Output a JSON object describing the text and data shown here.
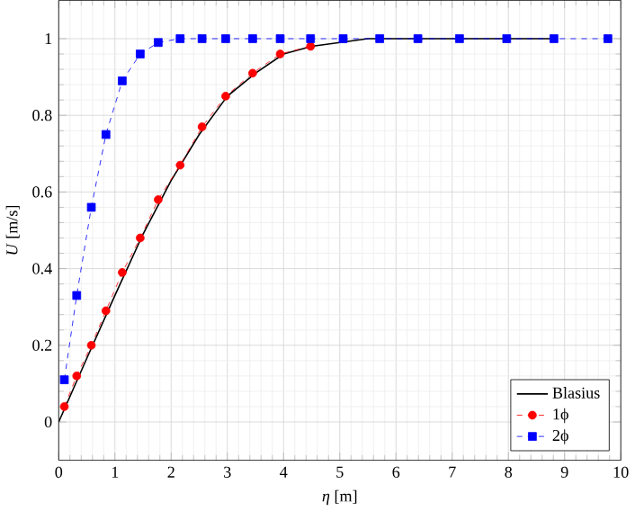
{
  "chart_data": {
    "type": "line",
    "xlabel": "*η* [m]",
    "ylabel": "*U* [m/s]",
    "xlim": [
      0,
      10
    ],
    "ylim": [
      -0.1,
      1.1
    ],
    "xticks": [
      0,
      1,
      2,
      3,
      4,
      5,
      6,
      7,
      8,
      9,
      10
    ],
    "yticks": [
      0,
      0.2,
      0.4,
      0.6,
      0.8,
      1
    ],
    "grid": true,
    "legend": "bottom right",
    "series": [
      {
        "name": "Blasius",
        "color": "#000000",
        "marker": "none",
        "line_style": "solid",
        "x": [
          0,
          0.5,
          1,
          1.5,
          2,
          2.5,
          3,
          3.5,
          4,
          4.5,
          5,
          5.5,
          6,
          7,
          8,
          8.8
        ],
        "values": [
          0,
          0.166,
          0.33,
          0.49,
          0.63,
          0.75,
          0.85,
          0.91,
          0.96,
          0.98,
          0.99,
          1.0,
          1.0,
          1.0,
          1.0,
          1.0
        ]
      },
      {
        "name": "1ϕ",
        "color": "#ff0000",
        "marker": "circle",
        "line_style": "dashed",
        "x": [
          0.1,
          0.32,
          0.58,
          0.84,
          1.13,
          1.45,
          1.77,
          2.16,
          2.55,
          2.97,
          3.45,
          3.94,
          4.48
        ],
        "values": [
          0.04,
          0.12,
          0.2,
          0.29,
          0.39,
          0.48,
          0.58,
          0.67,
          0.77,
          0.85,
          0.91,
          0.96,
          0.98
        ]
      },
      {
        "name": "2ϕ",
        "color": "#0000ff",
        "marker": "square",
        "line_style": "dashed",
        "x": [
          0.1,
          0.32,
          0.58,
          0.84,
          1.13,
          1.45,
          1.77,
          2.16,
          2.55,
          2.97,
          3.45,
          3.94,
          4.48,
          5.06,
          5.71,
          6.39,
          7.13,
          7.97,
          8.81,
          9.77
        ],
        "values": [
          0.11,
          0.33,
          0.56,
          0.75,
          0.89,
          0.96,
          0.99,
          1.0,
          1.0,
          1.0,
          1.0,
          1.0,
          1.0,
          1.0,
          1.0,
          1.0,
          1.0,
          1.0,
          1.0,
          1.0
        ]
      }
    ]
  }
}
